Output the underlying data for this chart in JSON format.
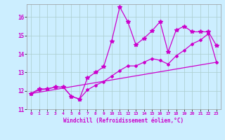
{
  "xlabel": "Windchill (Refroidissement éolien,°C)",
  "bg_color": "#cceeff",
  "grid_color": "#aacccc",
  "line_color": "#cc00cc",
  "xlim": [
    -0.5,
    23.5
  ],
  "ylim": [
    11.0,
    16.7
  ],
  "yticks": [
    11,
    12,
    13,
    14,
    15,
    16
  ],
  "xticks": [
    0,
    1,
    2,
    3,
    4,
    5,
    6,
    7,
    8,
    9,
    10,
    11,
    12,
    13,
    14,
    15,
    16,
    17,
    18,
    19,
    20,
    21,
    22,
    23
  ],
  "series1_x": [
    0,
    1,
    2,
    3,
    4,
    5,
    6,
    7,
    8,
    9,
    10,
    11,
    12,
    13,
    14,
    15,
    16,
    17,
    18,
    19,
    20,
    21,
    22,
    23
  ],
  "series1_y": [
    11.85,
    12.1,
    12.1,
    12.2,
    12.2,
    11.7,
    11.55,
    12.7,
    13.0,
    13.3,
    14.7,
    16.55,
    15.75,
    14.5,
    14.85,
    15.25,
    15.75,
    14.1,
    15.3,
    15.5,
    15.2,
    15.2,
    15.2,
    14.45
  ],
  "series2_x": [
    0,
    1,
    2,
    3,
    4,
    5,
    6,
    7,
    8,
    9,
    10,
    11,
    12,
    13,
    14,
    15,
    16,
    17,
    18,
    19,
    20,
    21,
    22,
    23
  ],
  "series2_y": [
    11.85,
    12.05,
    12.1,
    12.2,
    12.2,
    11.7,
    11.55,
    12.05,
    12.3,
    12.5,
    12.8,
    13.1,
    13.35,
    13.35,
    13.55,
    13.75,
    13.65,
    13.45,
    13.9,
    14.2,
    14.55,
    14.75,
    15.1,
    13.55
  ],
  "series3_x": [
    0,
    23
  ],
  "series3_y": [
    11.85,
    13.55
  ]
}
